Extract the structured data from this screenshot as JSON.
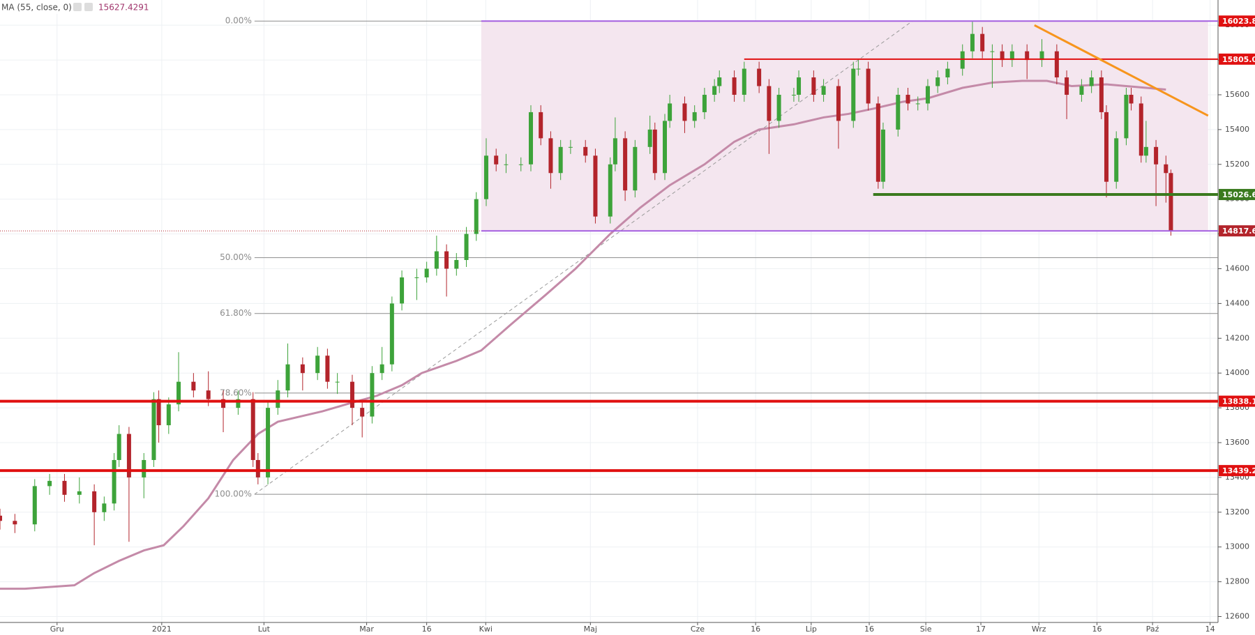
{
  "header": {
    "indicator": "MA (55, close, 0)",
    "value": "15627.4291"
  },
  "chart_data": {
    "type": "candlestick",
    "up_color": "#3da33a",
    "down_color": "#b3242b",
    "xlim": [
      0,
      245.5
    ],
    "ylim": [
      12566,
      16145
    ],
    "xticks": [
      {
        "value": 11.5,
        "label": "Gru"
      },
      {
        "value": 32.6,
        "label": "2021"
      },
      {
        "value": 53.2,
        "label": "Lut"
      },
      {
        "value": 73.9,
        "label": "Mar"
      },
      {
        "value": 86,
        "label": "16"
      },
      {
        "value": 97.9,
        "label": "Kwi"
      },
      {
        "value": 119,
        "label": "Maj"
      },
      {
        "value": 140.6,
        "label": "Cze"
      },
      {
        "value": 152.3,
        "label": "16"
      },
      {
        "value": 163.5,
        "label": "Lip"
      },
      {
        "value": 175.2,
        "label": "16"
      },
      {
        "value": 186.6,
        "label": "Sie"
      },
      {
        "value": 197.7,
        "label": "17"
      },
      {
        "value": 209.4,
        "label": "Wrz"
      },
      {
        "value": 221.1,
        "label": "16"
      },
      {
        "value": 232.3,
        "label": "Paź"
      },
      {
        "value": 243.9,
        "label": "14"
      }
    ],
    "yticks": [
      12600,
      12800,
      13000,
      13200,
      13400,
      13600,
      13800,
      14000,
      14200,
      14400,
      14600,
      14800,
      15000,
      15200,
      15400,
      15600,
      15800,
      16000
    ],
    "grid": true,
    "candles": [
      [
        0,
        13180,
        13220,
        13100,
        13150
      ],
      [
        3,
        13150,
        13190,
        13080,
        13130
      ],
      [
        7,
        13130,
        13390,
        13090,
        13350
      ],
      [
        10,
        13350,
        13420,
        13300,
        13380
      ],
      [
        13,
        13380,
        13420,
        13260,
        13300
      ],
      [
        16,
        13300,
        13400,
        13250,
        13320
      ],
      [
        19,
        13320,
        13360,
        13010,
        13200
      ],
      [
        21,
        13200,
        13290,
        13150,
        13250
      ],
      [
        23,
        13250,
        13540,
        13210,
        13500
      ],
      [
        24,
        13500,
        13700,
        13460,
        13650
      ],
      [
        26,
        13650,
        13690,
        13030,
        13400
      ],
      [
        29,
        13400,
        13540,
        13280,
        13500
      ],
      [
        31,
        13500,
        13890,
        13460,
        13850
      ],
      [
        32,
        13850,
        13900,
        13600,
        13700
      ],
      [
        34,
        13700,
        13860,
        13650,
        13820
      ],
      [
        36,
        13820,
        14120,
        13780,
        13950
      ],
      [
        39,
        13950,
        14000,
        13860,
        13900
      ],
      [
        42,
        13900,
        14010,
        13810,
        13850
      ],
      [
        45,
        13850,
        13900,
        13660,
        13800
      ],
      [
        48,
        13800,
        13900,
        13760,
        13850
      ],
      [
        51,
        13850,
        13890,
        13460,
        13500
      ],
      [
        52,
        13500,
        13540,
        13360,
        13400
      ],
      [
        54,
        13400,
        13840,
        13360,
        13800
      ],
      [
        56,
        13800,
        13960,
        13760,
        13900
      ],
      [
        58,
        13900,
        14170,
        13860,
        14050
      ],
      [
        61,
        14050,
        14090,
        13900,
        14000
      ],
      [
        64,
        14000,
        14150,
        13960,
        14100
      ],
      [
        66,
        14100,
        14140,
        13910,
        13950
      ],
      [
        68,
        13950,
        14000,
        13880,
        13950
      ],
      [
        71,
        13950,
        13990,
        13700,
        13800
      ],
      [
        73,
        13800,
        13840,
        13630,
        13750
      ],
      [
        75,
        13750,
        14040,
        13710,
        14000
      ],
      [
        77,
        14000,
        14150,
        13960,
        14050
      ],
      [
        79,
        14050,
        14440,
        14010,
        14400
      ],
      [
        81,
        14400,
        14590,
        14360,
        14550
      ],
      [
        84,
        14550,
        14600,
        14420,
        14550
      ],
      [
        86,
        14550,
        14640,
        14520,
        14600
      ],
      [
        88,
        14600,
        14790,
        14560,
        14700
      ],
      [
        90,
        14700,
        14740,
        14440,
        14600
      ],
      [
        92,
        14600,
        14690,
        14560,
        14650
      ],
      [
        94,
        14650,
        14840,
        14610,
        14800
      ],
      [
        96,
        14800,
        15040,
        14760,
        15000
      ],
      [
        98,
        15000,
        15350,
        14960,
        15250
      ],
      [
        100,
        15250,
        15290,
        15160,
        15200
      ],
      [
        102,
        15200,
        15260,
        15150,
        15200
      ],
      [
        105,
        15200,
        15240,
        15160,
        15200
      ],
      [
        107,
        15200,
        15540,
        15160,
        15500
      ],
      [
        109,
        15500,
        15540,
        15310,
        15350
      ],
      [
        111,
        15350,
        15390,
        15060,
        15150
      ],
      [
        113,
        15150,
        15340,
        15110,
        15300
      ],
      [
        115,
        15300,
        15340,
        15260,
        15300
      ],
      [
        118,
        15300,
        15340,
        15210,
        15250
      ],
      [
        120,
        15250,
        15290,
        14860,
        14900
      ],
      [
        123,
        14900,
        15240,
        14860,
        15200
      ],
      [
        124,
        15200,
        15470,
        15160,
        15350
      ],
      [
        126,
        15350,
        15390,
        14990,
        15050
      ],
      [
        128,
        15050,
        15340,
        15010,
        15300
      ],
      [
        131,
        15300,
        15480,
        15260,
        15400
      ],
      [
        132,
        15400,
        15440,
        15110,
        15150
      ],
      [
        134,
        15150,
        15490,
        15110,
        15450
      ],
      [
        135,
        15450,
        15600,
        15410,
        15550
      ],
      [
        138,
        15550,
        15590,
        15380,
        15450
      ],
      [
        140,
        15450,
        15540,
        15410,
        15500
      ],
      [
        142,
        15500,
        15640,
        15460,
        15600
      ],
      [
        144,
        15600,
        15690,
        15560,
        15650
      ],
      [
        145,
        15650,
        15740,
        15610,
        15700
      ],
      [
        148,
        15700,
        15740,
        15560,
        15600
      ],
      [
        150,
        15600,
        15790,
        15560,
        15750
      ],
      [
        153,
        15750,
        15790,
        15610,
        15650
      ],
      [
        155,
        15650,
        15690,
        15260,
        15450
      ],
      [
        157,
        15450,
        15640,
        15410,
        15600
      ],
      [
        160,
        15600,
        15640,
        15560,
        15600
      ],
      [
        161,
        15600,
        15740,
        15560,
        15700
      ],
      [
        164,
        15700,
        15740,
        15560,
        15600
      ],
      [
        166,
        15600,
        15690,
        15560,
        15650
      ],
      [
        169,
        15650,
        15690,
        15290,
        15450
      ],
      [
        172,
        15450,
        15790,
        15410,
        15750
      ],
      [
        173,
        15750,
        15800,
        15710,
        15750
      ],
      [
        175,
        15750,
        15790,
        15510,
        15550
      ],
      [
        177,
        15550,
        15590,
        15060,
        15100
      ],
      [
        178,
        15100,
        15440,
        15060,
        15400
      ],
      [
        181,
        15400,
        15640,
        15360,
        15600
      ],
      [
        183,
        15600,
        15640,
        15510,
        15550
      ],
      [
        185,
        15550,
        15590,
        15510,
        15550
      ],
      [
        187,
        15550,
        15690,
        15510,
        15650
      ],
      [
        189,
        15650,
        15740,
        15610,
        15700
      ],
      [
        191,
        15700,
        15790,
        15660,
        15750
      ],
      [
        194,
        15750,
        15890,
        15710,
        15850
      ],
      [
        196,
        15850,
        16020,
        15810,
        15950
      ],
      [
        198,
        15950,
        15990,
        15810,
        15850
      ],
      [
        200,
        15850,
        15890,
        15640,
        15850
      ],
      [
        202,
        15850,
        15890,
        15760,
        15800
      ],
      [
        204,
        15800,
        15890,
        15760,
        15850
      ],
      [
        207,
        15850,
        15890,
        15690,
        15800
      ],
      [
        210,
        15800,
        15920,
        15760,
        15850
      ],
      [
        213,
        15850,
        15890,
        15660,
        15700
      ],
      [
        215,
        15700,
        15740,
        15460,
        15600
      ],
      [
        218,
        15600,
        15690,
        15560,
        15650
      ],
      [
        220,
        15650,
        15740,
        15610,
        15700
      ],
      [
        222,
        15700,
        15740,
        15460,
        15500
      ],
      [
        223,
        15500,
        15540,
        15010,
        15100
      ],
      [
        225,
        15100,
        15390,
        15060,
        15350
      ],
      [
        227,
        15350,
        15640,
        15310,
        15600
      ],
      [
        228,
        15600,
        15640,
        15510,
        15550
      ],
      [
        230,
        15550,
        15590,
        15210,
        15250
      ],
      [
        231,
        15250,
        15450,
        15210,
        15300
      ],
      [
        233,
        15300,
        15340,
        14960,
        15200
      ],
      [
        235,
        15200,
        15250,
        14980,
        15150
      ],
      [
        236,
        15150,
        15170,
        14790,
        14817.6
      ]
    ],
    "ma": {
      "color": "#c48aa8",
      "x": [
        0,
        5,
        15,
        19,
        24,
        29,
        33,
        37,
        42,
        47,
        52,
        56,
        65,
        71,
        76,
        81,
        85,
        92,
        97,
        103,
        110,
        116,
        123,
        129,
        135,
        142,
        148,
        153,
        160,
        166,
        171,
        176,
        182,
        187,
        194,
        200,
        206,
        211,
        216,
        223,
        227,
        235
      ],
      "values": [
        12760,
        12760,
        12780,
        12850,
        12920,
        12980,
        13010,
        13120,
        13280,
        13500,
        13650,
        13720,
        13780,
        13830,
        13870,
        13930,
        14000,
        14070,
        14130,
        14280,
        14450,
        14600,
        14800,
        14950,
        15080,
        15200,
        15330,
        15400,
        15430,
        15470,
        15490,
        15520,
        15560,
        15580,
        15640,
        15670,
        15680,
        15680,
        15650,
        15660,
        15650,
        15630
      ]
    },
    "zone": {
      "color": "#f4e6ef",
      "x": [
        97,
        243.5
      ],
      "values": [
        16023.8,
        14817.6
      ]
    },
    "fib": {
      "color": "#8c8c8c",
      "x": [
        51.3,
        245.5
      ],
      "levels": [
        {
          "value": 16023.8,
          "label": "0.00%"
        },
        {
          "value": 14663.5,
          "label": "50.00%"
        },
        {
          "value": 14342.5,
          "label": "61.80%"
        },
        {
          "value": 13885,
          "label": "78.60%"
        },
        {
          "value": 13303,
          "label": "100.00%"
        }
      ]
    },
    "levels": [
      {
        "value": 16023.8,
        "label": "16023.8",
        "color": "#e01010",
        "line_color": "#a35ee0",
        "from": 97,
        "style": "thin"
      },
      {
        "value": 15805,
        "label": "15805.0",
        "color": "#e01010",
        "line_color": "#e01010",
        "from": 150,
        "style": "thin"
      },
      {
        "value": 15026.6,
        "label": "15026.6",
        "color": "#3a7a1e",
        "line_color": "#3a7a1e",
        "from": 176,
        "style": "thick"
      },
      {
        "value": 14817.6,
        "label": "14817.6",
        "color": "#b3242b",
        "line_color": "#a35ee0",
        "from": 97,
        "style": "thin"
      },
      {
        "value": 13838.1,
        "label": "13838.1",
        "color": "#e01010",
        "line_color": "#e01010",
        "from": 0,
        "style": "thick"
      },
      {
        "value": 13439.2,
        "label": "13439.2",
        "color": "#e01010",
        "line_color": "#e01010",
        "from": 0,
        "style": "thick"
      }
    ],
    "trendline": {
      "color": "#f7951d",
      "x": [
        208.5,
        243.5
      ],
      "values": [
        16000,
        15480
      ]
    },
    "diagonal": {
      "color": "#9a9a9a",
      "x": [
        51.3,
        183.9
      ],
      "values": [
        13303,
        16023.8
      ]
    }
  }
}
